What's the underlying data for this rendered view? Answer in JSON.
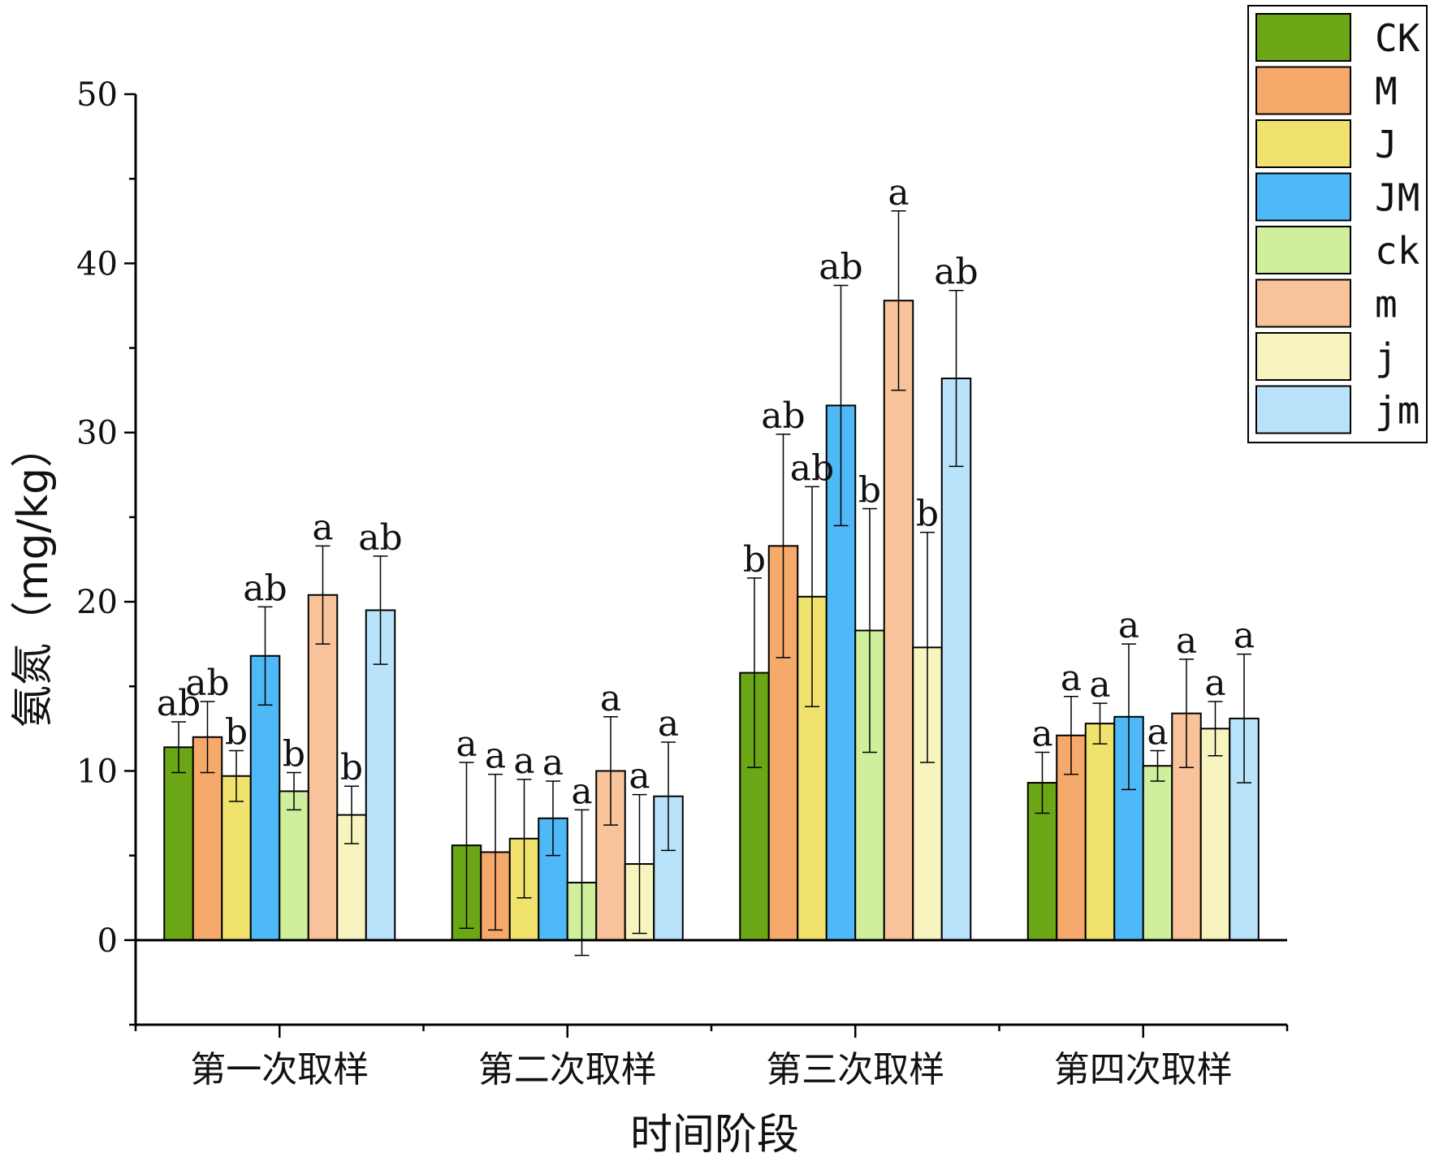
{
  "chart_data": {
    "type": "bar",
    "title": "",
    "xlabel": "时间阶段",
    "ylabel": "氨氮（mg/kg）",
    "ylim": [
      -5,
      50
    ],
    "yticks": [
      0,
      10,
      20,
      30,
      40,
      50
    ],
    "categories": [
      "第一次取样",
      "第二次取样",
      "第三次取样",
      "第四次取样"
    ],
    "legend_position": "top-right",
    "series": [
      {
        "name": "CK",
        "color": "#6aa616",
        "values": [
          11.4,
          5.6,
          15.8,
          9.3
        ],
        "errors": [
          1.5,
          4.9,
          5.6,
          1.8
        ],
        "letters": [
          "ab",
          "a",
          "b",
          "a"
        ]
      },
      {
        "name": "M",
        "color": "#f5a96b",
        "values": [
          12.0,
          5.2,
          23.3,
          12.1
        ],
        "errors": [
          2.1,
          4.6,
          6.6,
          2.3
        ],
        "letters": [
          "ab",
          "a",
          "ab",
          "a"
        ]
      },
      {
        "name": "J",
        "color": "#efe36e",
        "values": [
          9.7,
          6.0,
          20.3,
          12.8
        ],
        "errors": [
          1.5,
          3.5,
          6.5,
          1.2
        ],
        "letters": [
          "b",
          "a",
          "ab",
          "a"
        ]
      },
      {
        "name": "JM",
        "color": "#4fb8f7",
        "values": [
          16.8,
          7.2,
          31.6,
          13.2
        ],
        "errors": [
          2.9,
          2.2,
          7.1,
          4.3
        ],
        "letters": [
          "ab",
          "a",
          "ab",
          "a"
        ]
      },
      {
        "name": "ck",
        "color": "#cfef9c",
        "values": [
          8.8,
          3.4,
          18.3,
          10.3
        ],
        "errors": [
          1.1,
          4.3,
          7.2,
          0.9
        ],
        "letters": [
          "b",
          "a",
          "b",
          "a"
        ]
      },
      {
        "name": "m",
        "color": "#f8c29a",
        "values": [
          20.4,
          10.0,
          37.8,
          13.4
        ],
        "errors": [
          2.9,
          3.2,
          5.3,
          3.2
        ],
        "letters": [
          "a",
          "a",
          "a",
          "a"
        ]
      },
      {
        "name": "j",
        "color": "#f8f4bf",
        "values": [
          7.4,
          4.5,
          17.3,
          12.5
        ],
        "errors": [
          1.7,
          4.1,
          6.8,
          1.6
        ],
        "letters": [
          "b",
          "a",
          "b",
          "a"
        ]
      },
      {
        "name": "jm",
        "color": "#b9e3fb",
        "values": [
          19.5,
          8.5,
          33.2,
          13.1
        ],
        "errors": [
          3.2,
          3.2,
          5.2,
          3.8
        ],
        "letters": [
          "ab",
          "a",
          "ab",
          "a"
        ]
      }
    ]
  }
}
